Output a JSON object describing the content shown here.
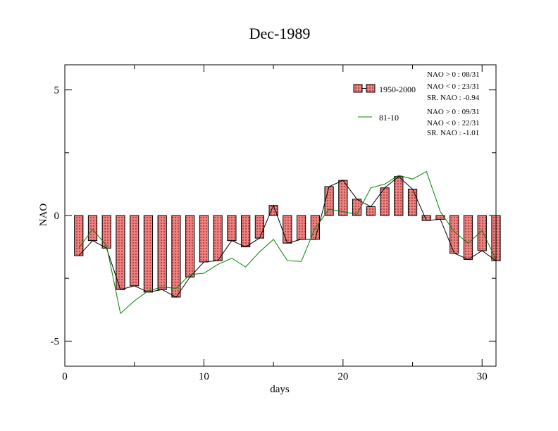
{
  "chart_data": {
    "type": "bar",
    "title": "Dec-1989",
    "xlabel": "days",
    "ylabel": "NAO",
    "xlim": [
      0,
      31
    ],
    "ylim": [
      -6,
      6
    ],
    "x_ticks": [
      0,
      10,
      20,
      30
    ],
    "y_ticks": [
      5,
      0,
      -5
    ],
    "x_tick_labels": [
      "0",
      "10",
      "20",
      "30"
    ],
    "y_tick_labels": [
      "5",
      "0",
      "-5"
    ],
    "legend_position": "top-right",
    "x": [
      1,
      2,
      3,
      4,
      5,
      6,
      7,
      8,
      9,
      10,
      11,
      12,
      13,
      14,
      15,
      16,
      17,
      18,
      19,
      20,
      21,
      22,
      23,
      24,
      25,
      26,
      27,
      28,
      29,
      30,
      31
    ],
    "series": [
      {
        "name": "1950-2000",
        "kind": "bar",
        "color": "#f08080",
        "values": [
          -1.6,
          -1.0,
          -1.3,
          -2.95,
          -2.8,
          -3.05,
          -2.95,
          -3.25,
          -2.45,
          -1.85,
          -1.8,
          -1.0,
          -1.25,
          -0.9,
          0.4,
          -1.1,
          -0.95,
          -0.95,
          1.15,
          1.4,
          0.65,
          0.35,
          1.1,
          1.55,
          1.05,
          -0.2,
          -0.15,
          -1.5,
          -1.75,
          -1.4,
          -1.8
        ]
      },
      {
        "name": "81-10",
        "kind": "line",
        "color": "#008000",
        "values": [
          -1.3,
          -0.55,
          -1.2,
          -3.9,
          -3.4,
          -3.0,
          -2.85,
          -2.9,
          -2.35,
          -2.3,
          -1.95,
          -1.7,
          -2.05,
          -1.45,
          -0.95,
          -1.8,
          -1.83,
          -0.5,
          0.25,
          0.15,
          0.05,
          1.1,
          1.25,
          1.6,
          1.45,
          1.75,
          0.15,
          -0.65,
          -1.1,
          -0.6,
          -1.75
        ]
      }
    ],
    "legend_stats": {
      "s1950": [
        "NAO > 0 : 08/31",
        "NAO < 0 : 23/31",
        "SR. NAO : -0.94"
      ],
      "s8110": [
        "NAO > 0 : 09/31",
        "NAO < 0 : 22/31",
        "SR. NAO : -1.01"
      ]
    }
  }
}
